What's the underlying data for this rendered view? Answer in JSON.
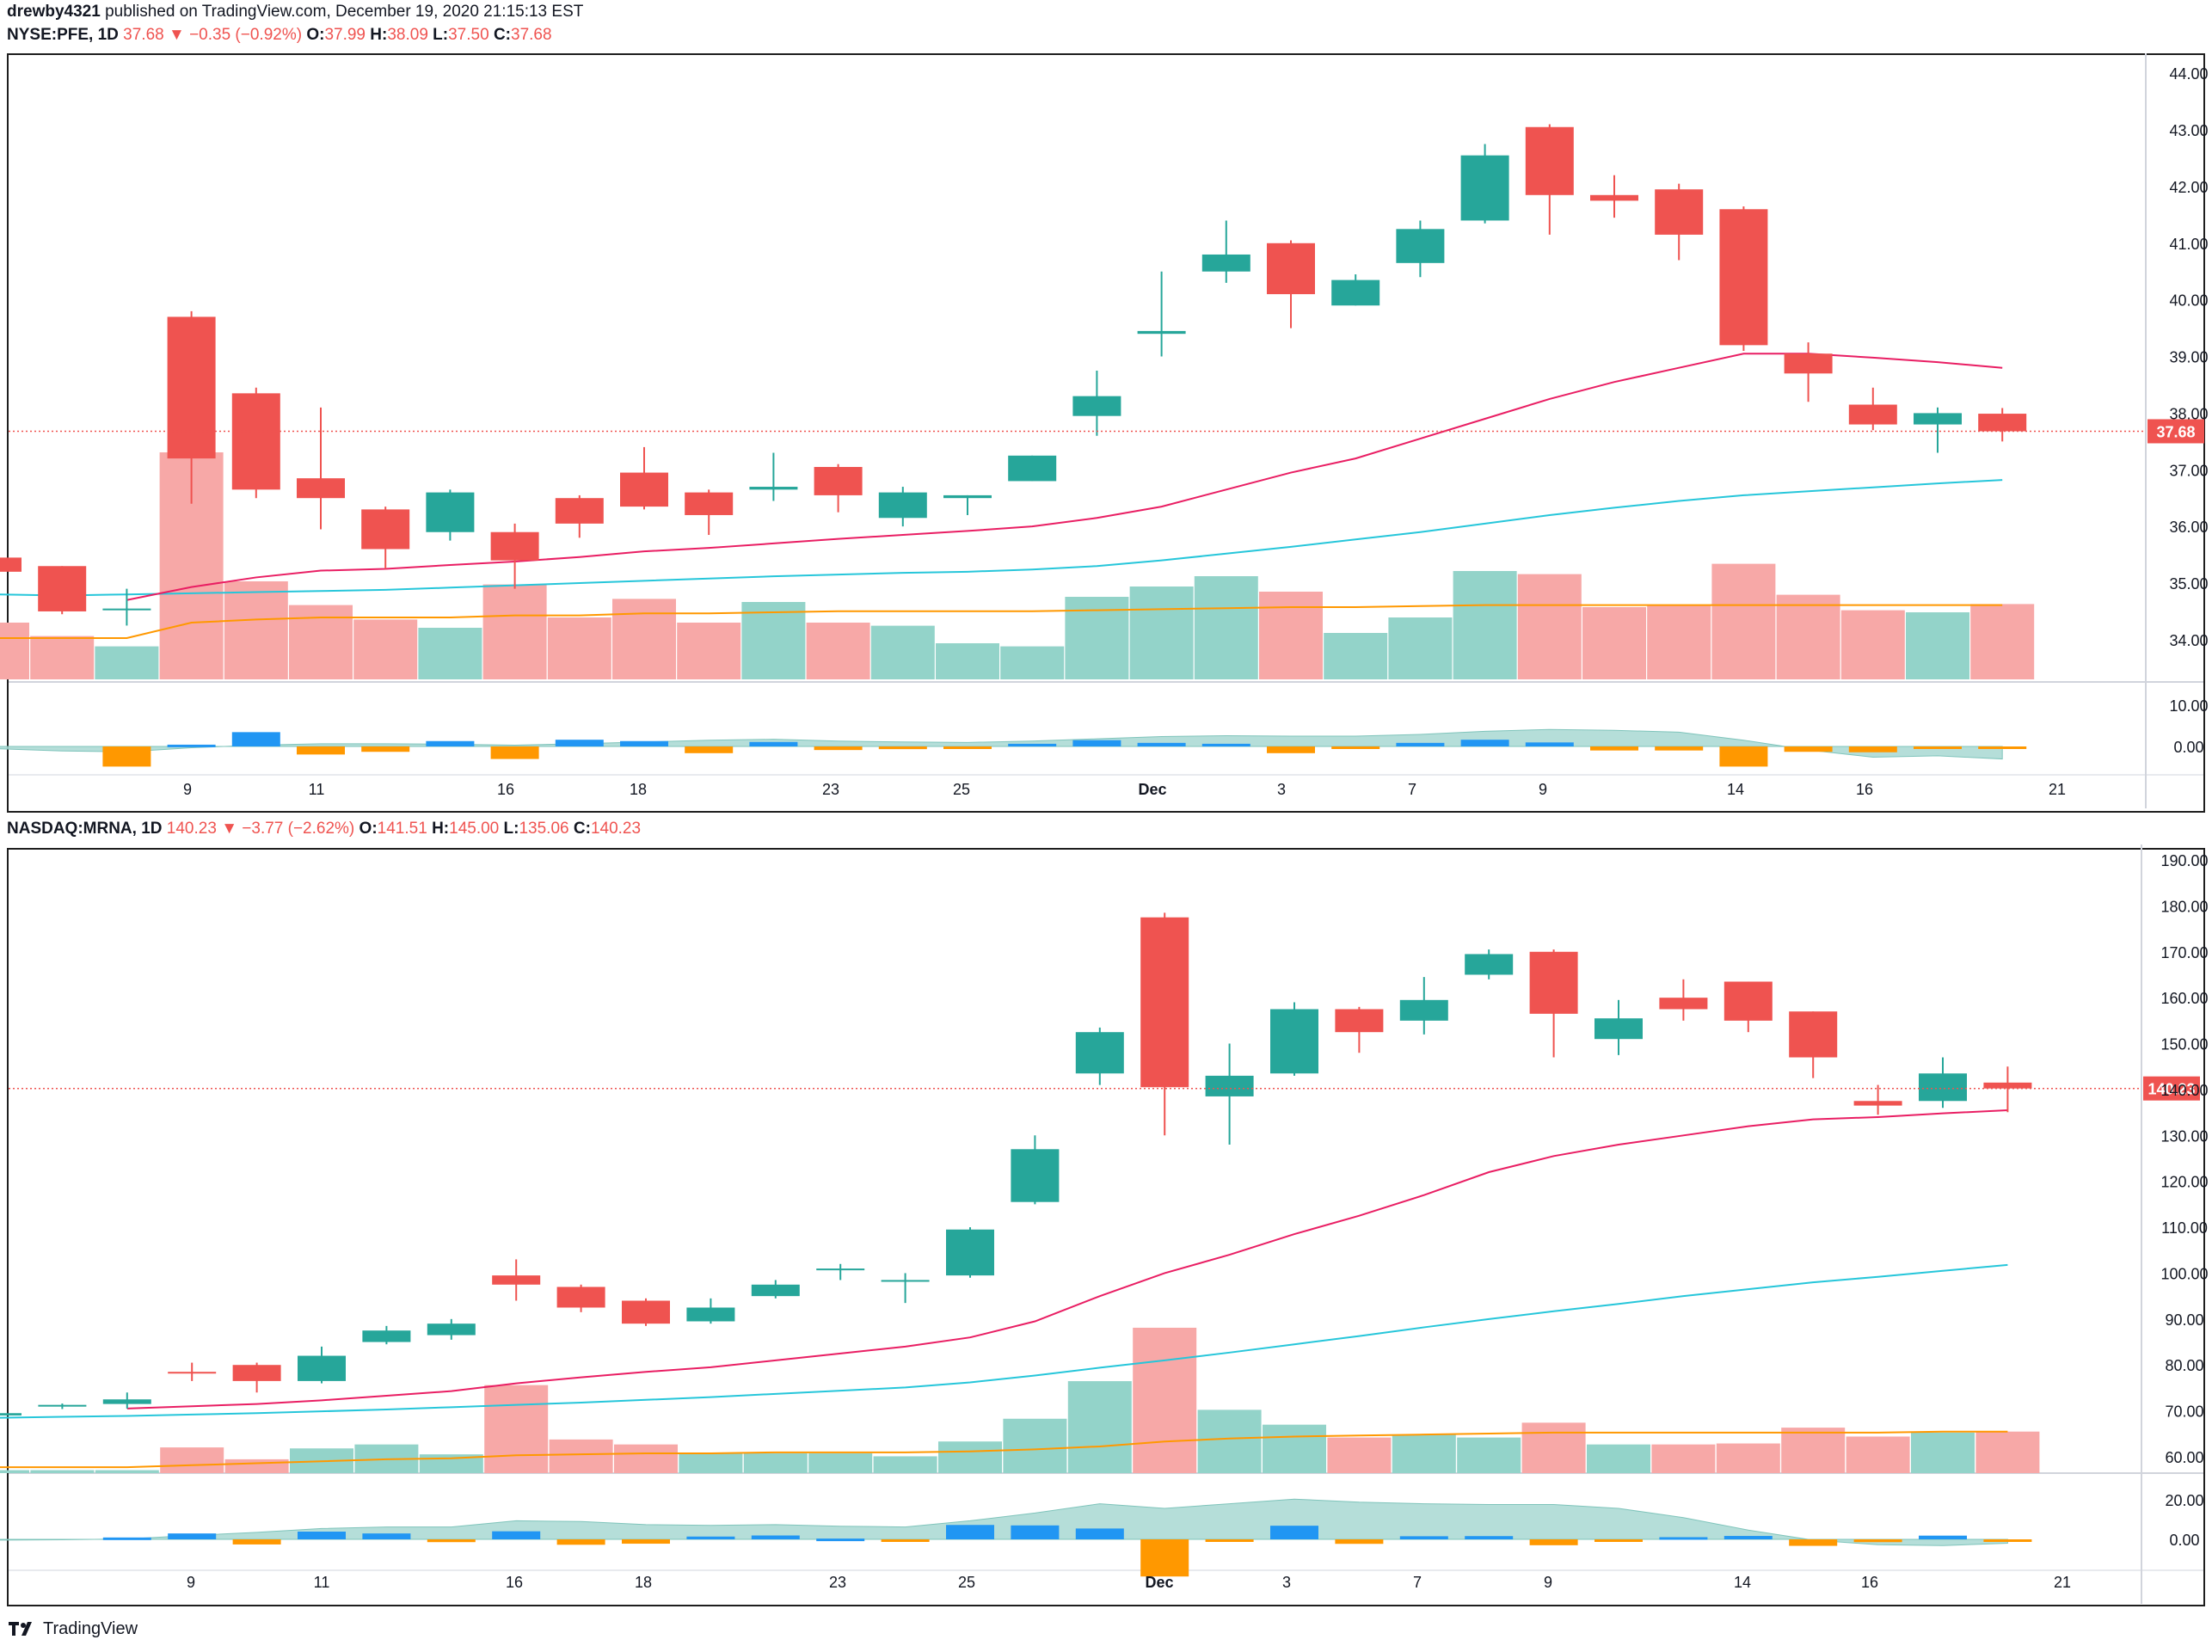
{
  "publish_line": {
    "user": "drewby4321",
    "text": "published on TradingView.com, December 19, 2020 21:15:13 EST"
  },
  "footer": {
    "brand": "TradingView"
  },
  "colors": {
    "up": "#26a69a",
    "down": "#ef5350",
    "vol_up": "#93d3c9",
    "vol_down": "#f7a8a7",
    "ema20": "#e91e63",
    "ma50": "#26c6da",
    "vol_ma": "#ff9800",
    "macd_up": "#2196f3",
    "macd_down": "#ff9800",
    "signal_fill": "#a8d8d2",
    "signal_fill_neg": "#f8c4c4"
  },
  "x_axis": {
    "labels": [
      "9",
      "11",
      "16",
      "18",
      "23",
      "25",
      "Dec",
      "3",
      "7",
      "9",
      "14",
      "16",
      "21"
    ]
  },
  "chart_data": [
    {
      "type": "candlestick",
      "title": "NYSE:PFE, 1D",
      "header": {
        "symbol": "NYSE:PFE, 1D",
        "last": "37.68",
        "change": "−0.35 (−0.92%)",
        "o": "37.99",
        "h": "38.09",
        "l": "37.50",
        "c": "37.68"
      },
      "last_price_label": "37.68",
      "y_ticks": [
        "44.00",
        "43.00",
        "42.00",
        "41.00",
        "40.00",
        "39.00",
        "38.00",
        "37.00",
        "36.00",
        "35.00",
        "34.00"
      ],
      "osc_ticks": [
        "10.00",
        "0.00"
      ],
      "ylim": [
        33.3,
        44.2
      ],
      "candles": [
        {
          "x": "Nov 5",
          "o": 35.45,
          "h": 35.55,
          "l": 35.25,
          "c": 35.2
        },
        {
          "x": "Nov 6",
          "o": 35.3,
          "h": 35.3,
          "l": 34.45,
          "c": 34.5
        },
        {
          "x": "Nov 6b",
          "o": 34.55,
          "h": 34.9,
          "l": 34.25,
          "c": 34.55
        },
        {
          "x": "Nov 9",
          "o": 39.7,
          "h": 39.8,
          "l": 36.4,
          "c": 37.2
        },
        {
          "x": "Nov 10",
          "o": 38.35,
          "h": 38.45,
          "l": 36.5,
          "c": 36.65
        },
        {
          "x": "Nov 11",
          "o": 36.85,
          "h": 38.1,
          "l": 35.95,
          "c": 36.5
        },
        {
          "x": "Nov 12",
          "o": 36.3,
          "h": 36.35,
          "l": 35.25,
          "c": 35.6
        },
        {
          "x": "Nov 13",
          "o": 35.9,
          "h": 36.65,
          "l": 35.75,
          "c": 36.6
        },
        {
          "x": "Nov 16",
          "o": 35.9,
          "h": 36.05,
          "l": 34.9,
          "c": 35.4
        },
        {
          "x": "Nov 17",
          "o": 36.5,
          "h": 36.55,
          "l": 35.8,
          "c": 36.05
        },
        {
          "x": "Nov 18",
          "o": 36.95,
          "h": 37.4,
          "l": 36.3,
          "c": 36.35
        },
        {
          "x": "Nov 19",
          "o": 36.6,
          "h": 36.65,
          "l": 35.85,
          "c": 36.2
        },
        {
          "x": "Nov 20",
          "o": 36.65,
          "h": 37.3,
          "l": 36.45,
          "c": 36.7
        },
        {
          "x": "Nov 23",
          "o": 37.05,
          "h": 37.1,
          "l": 36.25,
          "c": 36.55
        },
        {
          "x": "Nov 24",
          "o": 36.15,
          "h": 36.7,
          "l": 36.0,
          "c": 36.6
        },
        {
          "x": "Nov 25",
          "o": 36.5,
          "h": 36.55,
          "l": 36.2,
          "c": 36.55
        },
        {
          "x": "Nov 27",
          "o": 36.8,
          "h": 37.25,
          "l": 36.8,
          "c": 37.25
        },
        {
          "x": "Nov 30",
          "o": 37.95,
          "h": 38.75,
          "l": 37.6,
          "c": 38.3
        },
        {
          "x": "Dec 1",
          "o": 39.4,
          "h": 40.5,
          "l": 39.0,
          "c": 39.45
        },
        {
          "x": "Dec 2",
          "o": 40.5,
          "h": 41.4,
          "l": 40.3,
          "c": 40.8
        },
        {
          "x": "Dec 3",
          "o": 41.0,
          "h": 41.05,
          "l": 39.5,
          "c": 40.1
        },
        {
          "x": "Dec 4",
          "o": 39.9,
          "h": 40.45,
          "l": 39.9,
          "c": 40.35
        },
        {
          "x": "Dec 7",
          "o": 40.65,
          "h": 41.4,
          "l": 40.4,
          "c": 41.25
        },
        {
          "x": "Dec 8",
          "o": 41.4,
          "h": 42.75,
          "l": 41.35,
          "c": 42.55
        },
        {
          "x": "Dec 9",
          "o": 43.05,
          "h": 43.1,
          "l": 41.15,
          "c": 41.85
        },
        {
          "x": "Dec 10",
          "o": 41.85,
          "h": 42.2,
          "l": 41.45,
          "c": 41.75
        },
        {
          "x": "Dec 11",
          "o": 41.95,
          "h": 42.05,
          "l": 40.7,
          "c": 41.15
        },
        {
          "x": "Dec 14",
          "o": 41.6,
          "h": 41.65,
          "l": 39.1,
          "c": 39.2
        },
        {
          "x": "Dec 15",
          "o": 39.05,
          "h": 39.25,
          "l": 38.2,
          "c": 38.7
        },
        {
          "x": "Dec 16",
          "o": 38.15,
          "h": 38.45,
          "l": 37.7,
          "c": 37.8
        },
        {
          "x": "Dec 17",
          "o": 37.8,
          "h": 38.1,
          "l": 37.3,
          "c": 38.0
        },
        {
          "x": "Dec 18",
          "o": 37.99,
          "h": 38.09,
          "l": 37.5,
          "c": 37.68
        }
      ],
      "ema20": [
        null,
        null,
        34.7,
        34.93,
        35.1,
        35.22,
        35.25,
        35.32,
        35.38,
        35.46,
        35.56,
        35.62,
        35.7,
        35.78,
        35.85,
        35.92,
        36.0,
        36.15,
        36.35,
        36.65,
        36.95,
        37.2,
        37.55,
        37.9,
        38.25,
        38.55,
        38.8,
        39.05,
        39.05,
        38.98,
        38.9,
        38.8
      ],
      "ma50": [
        34.8,
        34.78,
        34.8,
        34.82,
        34.84,
        34.86,
        34.88,
        34.92,
        34.96,
        35.0,
        35.04,
        35.08,
        35.12,
        35.15,
        35.18,
        35.2,
        35.24,
        35.3,
        35.4,
        35.52,
        35.64,
        35.77,
        35.9,
        36.05,
        36.2,
        36.33,
        36.45,
        36.55,
        36.62,
        36.69,
        36.76,
        36.82
      ],
      "volume": [
        0.55,
        0.42,
        0.32,
        2.2,
        0.95,
        0.72,
        0.58,
        0.5,
        0.92,
        0.6,
        0.78,
        0.55,
        0.75,
        0.55,
        0.52,
        0.35,
        0.32,
        0.8,
        0.9,
        1.0,
        0.85,
        0.45,
        0.6,
        1.05,
        1.02,
        0.7,
        0.72,
        1.12,
        0.82,
        0.67,
        0.65,
        0.73
      ],
      "vol_ma": [
        0.4,
        0.4,
        0.4,
        0.55,
        0.58,
        0.6,
        0.6,
        0.6,
        0.62,
        0.62,
        0.64,
        0.64,
        0.65,
        0.66,
        0.66,
        0.66,
        0.66,
        0.67,
        0.68,
        0.69,
        0.7,
        0.7,
        0.71,
        0.72,
        0.72,
        0.72,
        0.72,
        0.72,
        0.72,
        0.72,
        0.72,
        0.72
      ],
      "macd_hist": [
        0,
        0,
        -4.5,
        0.4,
        3.2,
        -1.8,
        -1.2,
        1.2,
        -2.8,
        1.5,
        1.2,
        -1.5,
        1.0,
        -0.8,
        -0.6,
        -0.3,
        0.6,
        1.4,
        0.8,
        0.6,
        -1.5,
        -0.5,
        0.8,
        1.5,
        0.9,
        -0.9,
        -0.9,
        -4.5,
        -1.2,
        -1.3,
        -0.2,
        -0.3
      ],
      "signal": [
        -0.5,
        -1.0,
        -1.2,
        -0.3,
        0.3,
        0.6,
        0.6,
        0.5,
        0.3,
        0.6,
        1.0,
        1.4,
        1.6,
        1.2,
        1.0,
        0.9,
        1.2,
        1.7,
        2.2,
        2.4,
        2.3,
        2.3,
        2.7,
        3.4,
        3.8,
        3.6,
        3.2,
        1.4,
        -0.8,
        -2.4,
        -2.1,
        -2.8
      ]
    },
    {
      "type": "candlestick",
      "title": "NASDAQ:MRNA, 1D",
      "header": {
        "symbol": "NASDAQ:MRNA, 1D",
        "last": "140.23",
        "change": "−3.77 (−2.62%)",
        "o": "141.51",
        "h": "145.00",
        "l": "135.06",
        "c": "140.23"
      },
      "last_price_label": "140.23",
      "y_ticks": [
        "190.00",
        "180.00",
        "170.00",
        "160.00",
        "150.00",
        "140.00",
        "130.00",
        "120.00",
        "110.00",
        "100.00",
        "90.00",
        "80.00",
        "70.00",
        "60.00"
      ],
      "osc_ticks": [
        "20.00",
        "0.00"
      ],
      "ylim": [
        57.0,
        191.5
      ],
      "candles": [
        {
          "x": "Nov 5",
          "o": 69.0,
          "h": 70.0,
          "l": 68.5,
          "c": 69.5
        },
        {
          "x": "Nov 6",
          "o": 71.0,
          "h": 71.6,
          "l": 70.4,
          "c": 71.3
        },
        {
          "x": "Nov 6b",
          "o": 71.5,
          "h": 74.0,
          "l": 70.5,
          "c": 72.5
        },
        {
          "x": "Nov 9",
          "o": 78.5,
          "h": 80.5,
          "l": 76.5,
          "c": 78.3
        },
        {
          "x": "Nov 10",
          "o": 80.0,
          "h": 80.5,
          "l": 74.0,
          "c": 76.5
        },
        {
          "x": "Nov 11",
          "o": 76.5,
          "h": 84.0,
          "l": 76.0,
          "c": 82.0
        },
        {
          "x": "Nov 12",
          "o": 85.0,
          "h": 88.5,
          "l": 84.5,
          "c": 87.5
        },
        {
          "x": "Nov 13",
          "o": 86.5,
          "h": 90.0,
          "l": 85.5,
          "c": 89.0
        },
        {
          "x": "Nov 16",
          "o": 99.5,
          "h": 103.0,
          "l": 94.0,
          "c": 97.5
        },
        {
          "x": "Nov 17",
          "o": 97.0,
          "h": 97.5,
          "l": 91.5,
          "c": 92.5
        },
        {
          "x": "Nov 18",
          "o": 94.0,
          "h": 94.5,
          "l": 88.5,
          "c": 89.0
        },
        {
          "x": "Nov 19",
          "o": 89.5,
          "h": 94.5,
          "l": 89.0,
          "c": 92.5
        },
        {
          "x": "Nov 20",
          "o": 95.0,
          "h": 98.5,
          "l": 94.5,
          "c": 97.5
        },
        {
          "x": "Nov 23",
          "o": 101.0,
          "h": 102.0,
          "l": 98.5,
          "c": 101.0
        },
        {
          "x": "Nov 24",
          "o": 98.5,
          "h": 100.0,
          "l": 93.5,
          "c": 98.5
        },
        {
          "x": "Nov 25",
          "o": 99.5,
          "h": 110.0,
          "l": 99.0,
          "c": 109.5
        },
        {
          "x": "Nov 27",
          "o": 115.5,
          "h": 130.0,
          "l": 115.0,
          "c": 127.0
        },
        {
          "x": "Nov 30",
          "o": 143.5,
          "h": 153.5,
          "l": 141.0,
          "c": 152.5
        },
        {
          "x": "Dec 1",
          "o": 177.5,
          "h": 178.5,
          "l": 130.0,
          "c": 140.5
        },
        {
          "x": "Dec 2",
          "o": 138.5,
          "h": 150.0,
          "l": 128.0,
          "c": 143.0
        },
        {
          "x": "Dec 3",
          "o": 143.5,
          "h": 159.0,
          "l": 143.0,
          "c": 157.5
        },
        {
          "x": "Dec 4",
          "o": 157.5,
          "h": 158.0,
          "l": 148.0,
          "c": 152.5
        },
        {
          "x": "Dec 7",
          "o": 155.0,
          "h": 164.5,
          "l": 152.0,
          "c": 159.5
        },
        {
          "x": "Dec 8",
          "o": 165.0,
          "h": 170.5,
          "l": 164.0,
          "c": 169.5
        },
        {
          "x": "Dec 9",
          "o": 170.0,
          "h": 170.5,
          "l": 147.0,
          "c": 156.5
        },
        {
          "x": "Dec 10",
          "o": 151.0,
          "h": 159.5,
          "l": 147.5,
          "c": 155.5
        },
        {
          "x": "Dec 11",
          "o": 160.0,
          "h": 164.0,
          "l": 155.0,
          "c": 157.5
        },
        {
          "x": "Dec 14",
          "o": 163.5,
          "h": 163.5,
          "l": 152.5,
          "c": 155.0
        },
        {
          "x": "Dec 15",
          "o": 157.0,
          "h": 157.0,
          "l": 142.5,
          "c": 147.0
        },
        {
          "x": "Dec 16",
          "o": 137.5,
          "h": 141.0,
          "l": 134.5,
          "c": 136.5
        },
        {
          "x": "Dec 17",
          "o": 137.5,
          "h": 147.0,
          "l": 136.0,
          "c": 143.5
        },
        {
          "x": "Dec 18",
          "o": 141.51,
          "h": 145.0,
          "l": 135.06,
          "c": 140.23
        }
      ],
      "ema20": [
        null,
        null,
        70.5,
        71.0,
        71.5,
        72.3,
        73.3,
        74.3,
        76.0,
        77.3,
        78.5,
        79.5,
        81.0,
        82.5,
        84.0,
        86.0,
        89.5,
        95.0,
        100.0,
        104.0,
        108.5,
        112.5,
        117.0,
        122.0,
        125.5,
        128.0,
        130.0,
        132.0,
        133.5,
        134.0,
        134.8,
        135.5
      ],
      "ma50": [
        68.5,
        68.7,
        68.9,
        69.2,
        69.5,
        69.9,
        70.3,
        70.8,
        71.3,
        71.8,
        72.4,
        73.0,
        73.7,
        74.4,
        75.1,
        76.2,
        77.7,
        79.4,
        81.0,
        82.7,
        84.5,
        86.3,
        88.2,
        90.0,
        91.7,
        93.3,
        95.0,
        96.5,
        98.0,
        99.2,
        100.5,
        101.8
      ],
      "volume": [
        0.15,
        0.15,
        0.15,
        1.3,
        0.7,
        1.25,
        1.45,
        0.95,
        4.45,
        1.7,
        1.45,
        1.0,
        1.0,
        1.0,
        0.85,
        1.6,
        2.75,
        4.65,
        7.35,
        3.2,
        2.45,
        1.8,
        1.95,
        1.8,
        2.55,
        1.45,
        1.45,
        1.5,
        2.3,
        1.85,
        2.05,
        2.1
      ],
      "vol_ma": [
        0.3,
        0.3,
        0.3,
        0.4,
        0.5,
        0.6,
        0.7,
        0.75,
        0.9,
        0.95,
        1.0,
        1.0,
        1.05,
        1.05,
        1.05,
        1.1,
        1.2,
        1.35,
        1.6,
        1.75,
        1.85,
        1.9,
        1.95,
        2.0,
        2.05,
        2.05,
        2.05,
        2.05,
        2.05,
        2.05,
        2.1,
        2.1
      ],
      "macd_hist": [
        0,
        0,
        1.2,
        3.8,
        -3.3,
        5.0,
        3.8,
        -1.8,
        5.2,
        -3.5,
        -2.8,
        1.8,
        2.5,
        0.5,
        -0.8,
        9.3,
        9.0,
        7.0,
        -24.0,
        -1.4,
        8.8,
        -2.9,
        2.0,
        2.1,
        -3.8,
        -1.5,
        1.4,
        2.2,
        -4.2,
        -1.8,
        2.4,
        -0.8
      ],
      "signal": [
        -0.5,
        -0.3,
        0.3,
        2.5,
        4.5,
        7.0,
        8.0,
        8.0,
        12.0,
        11.5,
        9.5,
        9.0,
        9.5,
        8.5,
        8.0,
        12.0,
        17.0,
        23.0,
        20.0,
        23.0,
        26.0,
        24.0,
        23.0,
        22.5,
        22.5,
        20.0,
        14.0,
        6.0,
        -0.5,
        -3.5,
        -4.0,
        -2.5
      ]
    }
  ]
}
